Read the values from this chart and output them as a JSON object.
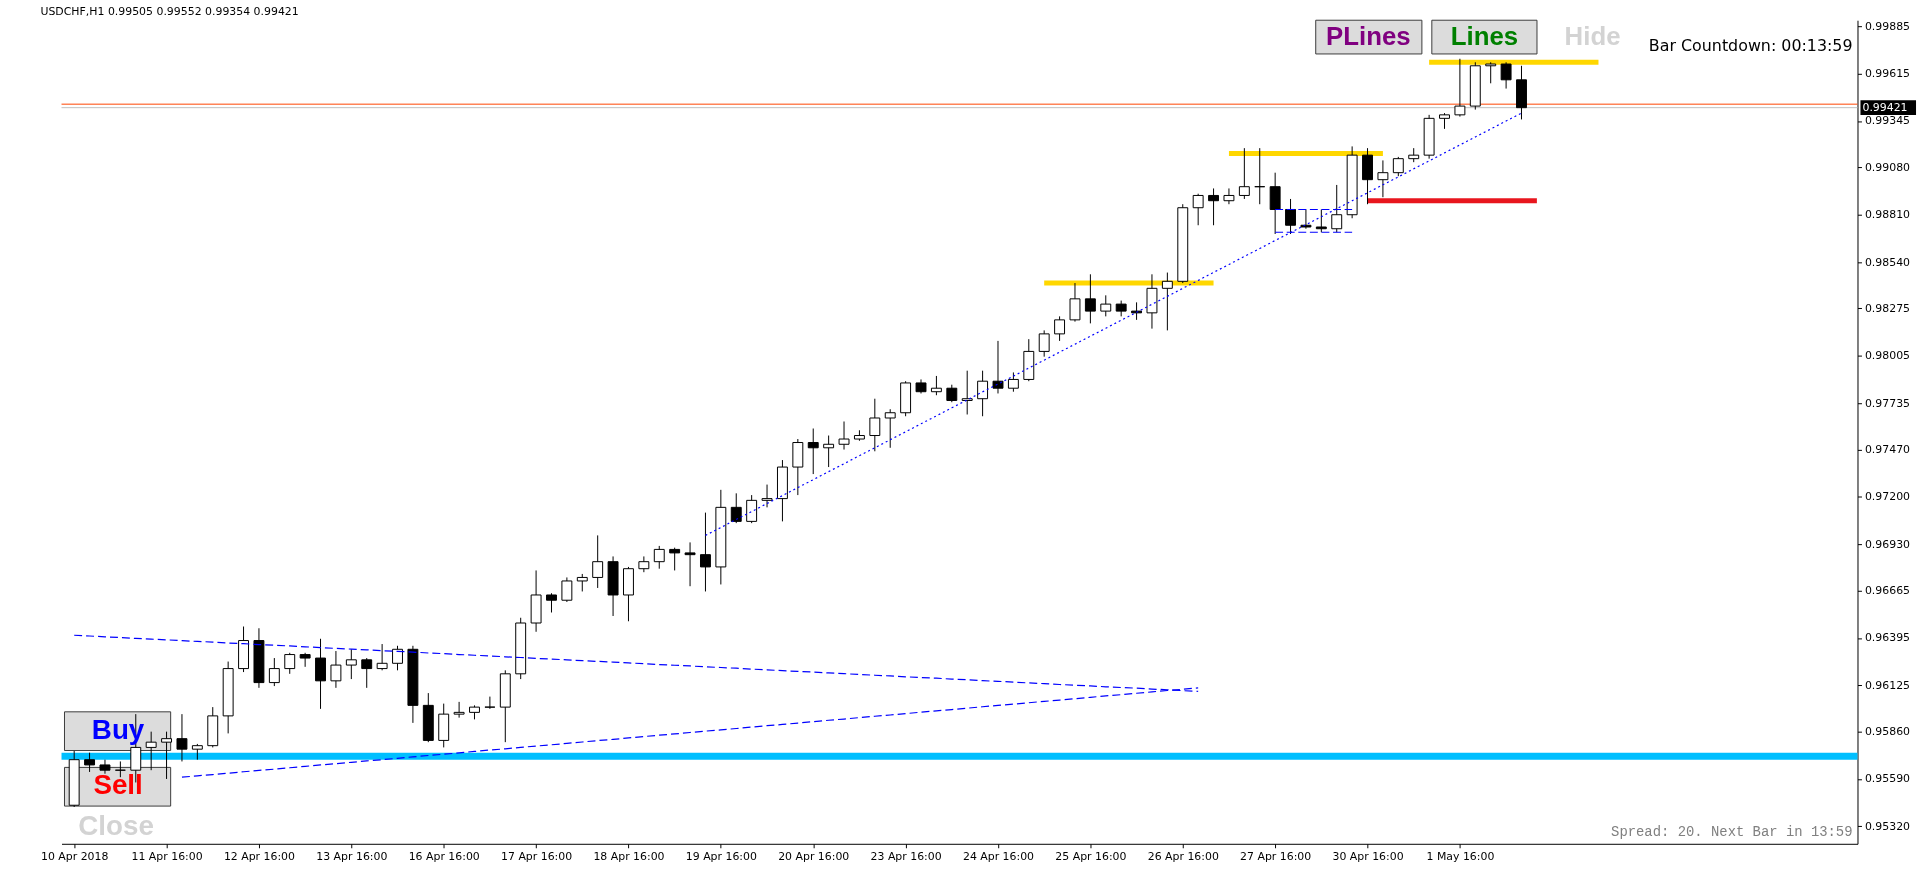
{
  "chart_data": {
    "type": "candlestick",
    "title": "USDCHF,H1 0.99505 0.99552 0.99354 0.99421",
    "categories": [
      "10 Apr 2018",
      null,
      null,
      null,
      null,
      null,
      "11 Apr 16:00",
      null,
      null,
      null,
      null,
      null,
      "12 Apr 16:00",
      null,
      null,
      null,
      null,
      null,
      "13 Apr 16:00",
      null,
      null,
      null,
      null,
      null,
      "16 Apr 16:00",
      null,
      null,
      null,
      null,
      null,
      "17 Apr 16:00",
      null,
      null,
      null,
      null,
      null,
      "18 Apr 16:00",
      null,
      null,
      null,
      null,
      null,
      "19 Apr 16:00",
      null,
      null,
      null,
      null,
      null,
      "20 Apr 16:00",
      null,
      null,
      null,
      null,
      null,
      "23 Apr 16:00",
      null,
      null,
      null,
      null,
      null,
      "24 Apr 16:00",
      null,
      null,
      null,
      null,
      null,
      "25 Apr 16:00",
      null,
      null,
      null,
      null,
      null,
      "26 Apr 16:00",
      null,
      null,
      null,
      null,
      null,
      "27 Apr 16:00",
      null,
      null,
      null,
      null,
      null,
      "30 Apr 16:00",
      null,
      null,
      null,
      null,
      null,
      "1 May 16:00",
      null,
      null,
      null,
      null,
      null,
      null,
      null,
      null,
      null,
      null,
      null,
      null,
      null,
      null,
      null,
      null,
      null,
      null,
      null,
      null,
      null,
      null,
      null,
      null,
      null
    ],
    "ohlc": [
      [
        0.9544,
        0.9575,
        0.9543,
        0.957
      ],
      [
        0.957,
        0.9574,
        0.9563,
        0.9567
      ],
      [
        0.9567,
        0.957,
        0.9562,
        0.9564
      ],
      [
        0.9564,
        0.9569,
        0.956,
        0.9564
      ],
      [
        0.9564,
        0.9596,
        0.9557,
        0.9577
      ],
      [
        0.9577,
        0.9586,
        0.9564,
        0.958
      ],
      [
        0.958,
        0.9586,
        0.9559,
        0.9582
      ],
      [
        0.9582,
        0.9596,
        0.9569,
        0.9576
      ],
      [
        0.9576,
        0.9579,
        0.957,
        0.9578
      ],
      [
        0.9578,
        0.96,
        0.9577,
        0.9595
      ],
      [
        0.9595,
        0.9626,
        0.9585,
        0.9622
      ],
      [
        0.9622,
        0.9646,
        0.962,
        0.9638
      ],
      [
        0.9638,
        0.9645,
        0.9611,
        0.9614
      ],
      [
        0.9614,
        0.9628,
        0.9612,
        0.9622
      ],
      [
        0.9622,
        0.9631,
        0.9619,
        0.963
      ],
      [
        0.963,
        0.9631,
        0.9623,
        0.9628
      ],
      [
        0.9628,
        0.9639,
        0.9599,
        0.9615
      ],
      [
        0.9615,
        0.9632,
        0.9611,
        0.9624
      ],
      [
        0.9624,
        0.9633,
        0.9616,
        0.9627
      ],
      [
        0.9627,
        0.9628,
        0.9611,
        0.9622
      ],
      [
        0.9622,
        0.9636,
        0.9621,
        0.9625
      ],
      [
        0.9625,
        0.9635,
        0.9621,
        0.9633
      ],
      [
        0.9633,
        0.9635,
        0.9591,
        0.9601
      ],
      [
        0.9601,
        0.9608,
        0.958,
        0.9581
      ],
      [
        0.9581,
        0.9602,
        0.9577,
        0.9596
      ],
      [
        0.9596,
        0.9603,
        0.9594,
        0.9597
      ],
      [
        0.9597,
        0.9601,
        0.9593,
        0.96
      ],
      [
        0.96,
        0.9606,
        0.9599,
        0.96
      ],
      [
        0.96,
        0.9621,
        0.958,
        0.9619
      ],
      [
        0.9619,
        0.9651,
        0.9616,
        0.9648
      ],
      [
        0.9648,
        0.9678,
        0.9643,
        0.9664
      ],
      [
        0.9664,
        0.9665,
        0.9654,
        0.9661
      ],
      [
        0.9661,
        0.9674,
        0.966,
        0.9672
      ],
      [
        0.9672,
        0.9676,
        0.9666,
        0.9674
      ],
      [
        0.9674,
        0.9698,
        0.9668,
        0.9683
      ],
      [
        0.9683,
        0.9686,
        0.9652,
        0.9664
      ],
      [
        0.9664,
        0.968,
        0.9649,
        0.9679
      ],
      [
        0.9679,
        0.9686,
        0.9677,
        0.9683
      ],
      [
        0.9683,
        0.9692,
        0.9679,
        0.969
      ],
      [
        0.969,
        0.9691,
        0.9678,
        0.9688
      ],
      [
        0.9688,
        0.9694,
        0.9669,
        0.9687
      ],
      [
        0.9687,
        0.9711,
        0.9666,
        0.968
      ],
      [
        0.968,
        0.9724,
        0.967,
        0.9714
      ],
      [
        0.9714,
        0.9722,
        0.9705,
        0.9706
      ],
      [
        0.9706,
        0.9721,
        0.9705,
        0.9718
      ],
      [
        0.9718,
        0.9727,
        0.9714,
        0.9719
      ],
      [
        0.9719,
        0.9741,
        0.9706,
        0.9737
      ],
      [
        0.9737,
        0.9753,
        0.9721,
        0.9751
      ],
      [
        0.9751,
        0.9759,
        0.9733,
        0.9748
      ],
      [
        0.9748,
        0.9755,
        0.9737,
        0.975
      ],
      [
        0.975,
        0.9763,
        0.9747,
        0.9753
      ],
      [
        0.9753,
        0.9758,
        0.9752,
        0.9755
      ],
      [
        0.9755,
        0.9776,
        0.9746,
        0.9765
      ],
      [
        0.9765,
        0.977,
        0.9748,
        0.9768
      ],
      [
        0.9768,
        0.9786,
        0.9766,
        0.9785
      ],
      [
        0.9785,
        0.9787,
        0.9779,
        0.978
      ],
      [
        0.978,
        0.9789,
        0.9778,
        0.9782
      ],
      [
        0.9782,
        0.9784,
        0.9774,
        0.9775
      ],
      [
        0.9775,
        0.9792,
        0.9767,
        0.9776
      ],
      [
        0.9776,
        0.9792,
        0.9766,
        0.9786
      ],
      [
        0.9786,
        0.9809,
        0.9779,
        0.9782
      ],
      [
        0.9782,
        0.9791,
        0.978,
        0.9787
      ],
      [
        0.9787,
        0.981,
        0.9786,
        0.9803
      ],
      [
        0.9803,
        0.9815,
        0.98,
        0.9813
      ],
      [
        0.9813,
        0.9823,
        0.9809,
        0.9821
      ],
      [
        0.9821,
        0.9842,
        0.982,
        0.9833
      ],
      [
        0.9833,
        0.9847,
        0.9819,
        0.9826
      ],
      [
        0.9826,
        0.9835,
        0.9823,
        0.983
      ],
      [
        0.983,
        0.9832,
        0.9823,
        0.9826
      ],
      [
        0.9826,
        0.9831,
        0.9821,
        0.9825
      ],
      [
        0.9825,
        0.9847,
        0.9816,
        0.9839
      ],
      [
        0.9839,
        0.9848,
        0.9815,
        0.9843
      ],
      [
        0.9843,
        0.9887,
        0.9842,
        0.9885
      ],
      [
        0.9885,
        0.9893,
        0.9875,
        0.9892
      ],
      [
        0.9892,
        0.9896,
        0.9875,
        0.9889
      ],
      [
        0.9889,
        0.9896,
        0.9887,
        0.9892
      ],
      [
        0.9892,
        0.9919,
        0.989,
        0.9897
      ],
      [
        0.9897,
        0.9919,
        0.9887,
        0.9897
      ],
      [
        0.9897,
        0.9905,
        0.987,
        0.9884
      ],
      [
        0.9884,
        0.989,
        0.987,
        0.9875
      ],
      [
        0.9875,
        0.9884,
        0.9873,
        0.9874
      ],
      [
        0.9874,
        0.9884,
        0.9871,
        0.9873
      ],
      [
        0.9873,
        0.9898,
        0.9871,
        0.9881
      ],
      [
        0.9881,
        0.992,
        0.9879,
        0.9915
      ],
      [
        0.9915,
        0.9919,
        0.9887,
        0.9901
      ],
      [
        0.9901,
        0.9912,
        0.9891,
        0.9905
      ],
      [
        0.9905,
        0.9914,
        0.9903,
        0.9913
      ],
      [
        0.9913,
        0.9919,
        0.9911,
        0.9915
      ],
      [
        0.9915,
        0.9938,
        0.9913,
        0.9936
      ],
      [
        0.9936,
        0.9939,
        0.993,
        0.9938
      ],
      [
        0.9938,
        0.997,
        0.9937,
        0.9943
      ],
      [
        0.9943,
        0.9968,
        0.9941,
        0.9966
      ],
      [
        0.9966,
        0.9968,
        0.9956,
        0.9967
      ],
      [
        0.9967,
        0.9968,
        0.9953,
        0.9958
      ],
      [
        0.9958,
        0.9966,
        0.99354,
        0.99421
      ],
      null,
      null,
      null,
      null,
      null,
      null,
      null,
      null,
      null,
      null,
      null,
      null,
      null,
      null,
      null,
      null,
      null,
      null,
      null,
      null,
      null
    ],
    "ylim": [
      0.9522,
      0.9992
    ],
    "yticks": [
      0.99885,
      0.99615,
      0.99345,
      {
        "value": 0.9908,
        "label": "0.99080"
      },
      {
        "value": 0.9881,
        "label": "0.98810"
      },
      {
        "value": 0.9854,
        "label": "0.98540"
      },
      0.98275,
      0.98005,
      0.97735,
      {
        "value": 0.9747,
        "label": "0.97470"
      },
      {
        "value": 0.972,
        "label": "0.97200"
      },
      {
        "value": 0.9693,
        "label": "0.96930"
      },
      0.96665,
      0.96395,
      0.96125,
      {
        "value": 0.9586,
        "label": "0.95860"
      },
      {
        "value": 0.9559,
        "label": "0.95590"
      },
      {
        "value": 0.9532,
        "label": "0.95320"
      }
    ],
    "series": [
      {
        "type": "line",
        "color": "#0000ff",
        "line_style": "dashed",
        "values": [
          0.9641,
          0.96406,
          0.96401,
          0.96397,
          0.96392,
          0.96388,
          0.96384,
          0.96379,
          0.96375,
          0.96371,
          0.96366,
          0.96362,
          0.96357,
          0.96353,
          0.96349,
          0.96344,
          0.9634,
          0.96335,
          0.96331,
          0.96327,
          0.96322,
          0.96318,
          0.96314,
          0.96309,
          0.96305,
          0.963,
          0.96296,
          0.96292,
          0.96287,
          0.96283,
          0.96278,
          0.96274,
          0.9627,
          0.96265,
          0.96261,
          0.96257,
          0.96252,
          0.96248,
          0.96243,
          0.96239,
          0.96235,
          0.9623,
          0.96226,
          0.96222,
          0.96217,
          0.96213,
          0.96208,
          0.96204,
          0.962,
          0.96195,
          0.96191,
          0.96186,
          0.96182,
          0.96178,
          0.96173,
          0.96169,
          0.96165,
          0.9616,
          0.96156,
          0.96151,
          0.96147,
          0.96143,
          0.96138,
          0.96134,
          0.96129,
          0.96125,
          0.96121,
          0.96116,
          0.96112,
          0.96108,
          0.96103,
          0.96099,
          0.96094,
          0.9609,
          null,
          null,
          null,
          null,
          null,
          null,
          null,
          null,
          null,
          null,
          null,
          null,
          null,
          null,
          null,
          null,
          null,
          null,
          null,
          null,
          null,
          null,
          null,
          null,
          null,
          null,
          null,
          null,
          null,
          null,
          null,
          null,
          null,
          null,
          null,
          null,
          null,
          null,
          null,
          null,
          null,
          null
        ]
      },
      {
        "type": "line",
        "color": "#0000ff",
        "line_style": "dashed",
        "values": [
          null,
          null,
          null,
          null,
          null,
          null,
          null,
          0.956,
          0.95608,
          0.95615,
          0.95623,
          0.95631,
          0.95639,
          0.95646,
          0.95654,
          0.95662,
          0.9567,
          0.95677,
          0.95685,
          0.95693,
          0.957,
          0.95708,
          0.95716,
          0.95724,
          0.95731,
          0.95739,
          0.95747,
          0.95755,
          0.95762,
          0.9577,
          0.95778,
          0.95785,
          0.95793,
          0.95801,
          0.95809,
          0.95816,
          0.95824,
          0.95832,
          0.9584,
          0.95847,
          0.95855,
          0.95863,
          0.9587,
          0.95878,
          0.95886,
          0.95894,
          0.95901,
          0.95909,
          0.95917,
          0.95925,
          0.95932,
          0.9594,
          0.95948,
          0.95955,
          0.95963,
          0.95971,
          0.95979,
          0.95986,
          0.95994,
          0.96002,
          0.9601,
          0.96017,
          0.96025,
          0.96033,
          0.9604,
          0.96048,
          0.96056,
          0.96064,
          0.96071,
          0.96079,
          0.96087,
          0.96095,
          0.96102,
          0.9611,
          null,
          null,
          null,
          null,
          null,
          null,
          null,
          null,
          null,
          null,
          null,
          null,
          null,
          null,
          null,
          null,
          null,
          null,
          null,
          null,
          null,
          null,
          null,
          null,
          null,
          null,
          null,
          null,
          null,
          null,
          null,
          null,
          null,
          null,
          null,
          null,
          null,
          null,
          null,
          null,
          null,
          null
        ]
      },
      {
        "type": "line",
        "color": "#0000ff",
        "line_style": "dotted",
        "values": [
          null,
          null,
          null,
          null,
          null,
          null,
          null,
          null,
          null,
          null,
          null,
          null,
          null,
          null,
          null,
          null,
          null,
          null,
          null,
          null,
          null,
          null,
          null,
          null,
          null,
          null,
          null,
          null,
          null,
          null,
          null,
          null,
          null,
          null,
          null,
          null,
          null,
          null,
          null,
          null,
          null,
          0.9698,
          0.97025,
          0.97071,
          0.97116,
          0.97162,
          0.97207,
          0.97253,
          0.97298,
          0.97344,
          0.97389,
          0.97435,
          0.9748,
          0.97526,
          0.97571,
          0.97617,
          0.97662,
          0.97708,
          0.97753,
          0.97799,
          0.97844,
          0.97889,
          0.97935,
          0.9798,
          0.98026,
          0.98071,
          0.98117,
          0.98162,
          0.98208,
          0.98253,
          0.98299,
          0.98344,
          0.9839,
          0.98435,
          0.98481,
          0.98526,
          0.98572,
          0.98617,
          0.98663,
          0.98708,
          0.98753,
          0.98799,
          0.98844,
          0.9889,
          0.98935,
          0.98981,
          0.99026,
          0.99072,
          0.99117,
          0.99163,
          0.99208,
          0.99254,
          0.99299,
          0.99345,
          0.9939,
          null,
          null,
          null,
          null,
          null,
          null,
          null,
          null,
          null,
          null,
          null,
          null,
          null,
          null,
          null,
          null,
          null,
          null,
          null,
          null,
          null
        ]
      },
      {
        "type": "line",
        "color": "#0000ff",
        "line_style": "dashed",
        "values": [
          null,
          null,
          null,
          null,
          null,
          null,
          null,
          null,
          null,
          null,
          null,
          null,
          null,
          null,
          null,
          null,
          null,
          null,
          null,
          null,
          null,
          null,
          null,
          null,
          null,
          null,
          null,
          null,
          null,
          null,
          null,
          null,
          null,
          null,
          null,
          null,
          null,
          null,
          null,
          null,
          null,
          null,
          null,
          null,
          null,
          null,
          null,
          null,
          null,
          null,
          null,
          null,
          null,
          null,
          null,
          null,
          null,
          null,
          null,
          null,
          null,
          null,
          null,
          null,
          null,
          null,
          null,
          null,
          null,
          null,
          null,
          null,
          null,
          null,
          null,
          null,
          null,
          null,
          0.9884,
          0.9884,
          0.9884,
          0.9884,
          0.9884,
          0.9884,
          null,
          null,
          null,
          null,
          null,
          null,
          null,
          null,
          null,
          null,
          null,
          null,
          null,
          null,
          null,
          null,
          null,
          null,
          null,
          null,
          null,
          null,
          null,
          null,
          null,
          null,
          null,
          null,
          null,
          null,
          null,
          null
        ]
      },
      {
        "type": "line",
        "color": "#0000ff",
        "line_style": "dashed",
        "values": [
          null,
          null,
          null,
          null,
          null,
          null,
          null,
          null,
          null,
          null,
          null,
          null,
          null,
          null,
          null,
          null,
          null,
          null,
          null,
          null,
          null,
          null,
          null,
          null,
          null,
          null,
          null,
          null,
          null,
          null,
          null,
          null,
          null,
          null,
          null,
          null,
          null,
          null,
          null,
          null,
          null,
          null,
          null,
          null,
          null,
          null,
          null,
          null,
          null,
          null,
          null,
          null,
          null,
          null,
          null,
          null,
          null,
          null,
          null,
          null,
          null,
          null,
          null,
          null,
          null,
          null,
          null,
          null,
          null,
          null,
          null,
          null,
          null,
          null,
          null,
          null,
          null,
          null,
          0.9871,
          0.9871,
          0.9871,
          0.9871,
          0.9871,
          0.9871,
          null,
          null,
          null,
          null,
          null,
          null,
          null,
          null,
          null,
          null,
          null,
          null,
          null,
          null,
          null,
          null,
          null,
          null,
          null,
          null,
          null,
          null,
          null,
          null,
          null,
          null,
          null,
          null,
          null,
          null,
          null,
          null
        ]
      },
      {
        "type": "line",
        "color": "#ffd700",
        "line_style": "solid",
        "values": [
          null,
          null,
          null,
          null,
          null,
          null,
          null,
          null,
          null,
          null,
          null,
          null,
          null,
          null,
          null,
          null,
          null,
          null,
          null,
          null,
          null,
          null,
          null,
          null,
          null,
          null,
          null,
          null,
          null,
          null,
          null,
          null,
          null,
          null,
          null,
          null,
          null,
          null,
          null,
          null,
          null,
          null,
          null,
          null,
          null,
          null,
          null,
          null,
          null,
          null,
          null,
          null,
          null,
          null,
          null,
          null,
          null,
          null,
          null,
          null,
          null,
          null,
          null,
          null,
          null,
          null,
          null,
          null,
          null,
          null,
          null,
          null,
          null,
          null,
          null,
          null,
          null,
          null,
          null,
          null,
          null,
          null,
          null,
          null,
          null,
          null,
          null,
          null,
          0.9968,
          0.9968,
          0.9968,
          0.9968,
          0.9968,
          0.9968,
          0.9968,
          0.9968,
          0.9968,
          0.9968,
          0.9968,
          0.9968,
          null,
          null,
          null,
          null,
          null,
          null,
          null,
          null,
          null,
          null,
          null,
          null,
          null,
          null,
          null,
          null
        ]
      },
      {
        "type": "line",
        "color": "#ffd700",
        "line_style": "solid",
        "values": [
          null,
          null,
          null,
          null,
          null,
          null,
          null,
          null,
          null,
          null,
          null,
          null,
          null,
          null,
          null,
          null,
          null,
          null,
          null,
          null,
          null,
          null,
          null,
          null,
          null,
          null,
          null,
          null,
          null,
          null,
          null,
          null,
          null,
          null,
          null,
          null,
          null,
          null,
          null,
          null,
          null,
          null,
          null,
          null,
          null,
          null,
          null,
          null,
          null,
          null,
          null,
          null,
          null,
          null,
          null,
          null,
          null,
          null,
          null,
          null,
          null,
          null,
          null,
          null,
          null,
          null,
          null,
          null,
          null,
          null,
          null,
          null,
          null,
          null,
          null,
          0.9916,
          0.9916,
          0.9916,
          0.9916,
          0.9916,
          0.9916,
          0.9916,
          0.9916,
          0.9916,
          0.9916,
          0.9916,
          null,
          null,
          null,
          null,
          null,
          null,
          null,
          null,
          null,
          null,
          null,
          null,
          null,
          null,
          null,
          null,
          null,
          null,
          null,
          null,
          null,
          null,
          null,
          null,
          null,
          null,
          null,
          null,
          null,
          null
        ]
      },
      {
        "type": "line",
        "color": "#ffd700",
        "line_style": "solid",
        "values": [
          null,
          null,
          null,
          null,
          null,
          null,
          null,
          null,
          null,
          null,
          null,
          null,
          null,
          null,
          null,
          null,
          null,
          null,
          null,
          null,
          null,
          null,
          null,
          null,
          null,
          null,
          null,
          null,
          null,
          null,
          null,
          null,
          null,
          null,
          null,
          null,
          null,
          null,
          null,
          null,
          null,
          null,
          null,
          null,
          null,
          null,
          null,
          null,
          null,
          null,
          null,
          null,
          null,
          null,
          null,
          null,
          null,
          null,
          null,
          null,
          null,
          null,
          null,
          0.9842,
          0.9842,
          0.9842,
          0.9842,
          0.9842,
          0.9842,
          0.9842,
          0.9842,
          0.9842,
          0.9842,
          0.9842,
          0.9842,
          null,
          null,
          null,
          null,
          null,
          null,
          null,
          null,
          null,
          null,
          null,
          null,
          null,
          null,
          null,
          null,
          null,
          null,
          null,
          null,
          null,
          null,
          null,
          null,
          null,
          null,
          null,
          null,
          null,
          null,
          null,
          null,
          null,
          null,
          null,
          null,
          null,
          null,
          null,
          null,
          null
        ]
      },
      {
        "type": "line",
        "color": "#e8161e",
        "line_style": "solid",
        "values": [
          null,
          null,
          null,
          null,
          null,
          null,
          null,
          null,
          null,
          null,
          null,
          null,
          null,
          null,
          null,
          null,
          null,
          null,
          null,
          null,
          null,
          null,
          null,
          null,
          null,
          null,
          null,
          null,
          null,
          null,
          null,
          null,
          null,
          null,
          null,
          null,
          null,
          null,
          null,
          null,
          null,
          null,
          null,
          null,
          null,
          null,
          null,
          null,
          null,
          null,
          null,
          null,
          null,
          null,
          null,
          null,
          null,
          null,
          null,
          null,
          null,
          null,
          null,
          null,
          null,
          null,
          null,
          null,
          null,
          null,
          null,
          null,
          null,
          null,
          null,
          null,
          null,
          null,
          null,
          null,
          null,
          null,
          null,
          null,
          0.9889,
          0.9889,
          0.9889,
          0.9889,
          0.9889,
          0.9889,
          0.9889,
          0.9889,
          0.9889,
          0.9889,
          0.9889,
          0.9889,
          null,
          null,
          null,
          null,
          null,
          null,
          null,
          null,
          null,
          null,
          null,
          null,
          null,
          null,
          null,
          null,
          null,
          null,
          null,
          null
        ]
      }
    ],
    "ref_lines": [
      {
        "axis": "y",
        "value": 0.9572,
        "color": "#00bfff"
      },
      {
        "axis": "y",
        "value": 0.99441,
        "color": "#ff4500"
      },
      {
        "axis": "y",
        "value": 0.99421,
        "label": "0.99421",
        "color": "#c0c0c0"
      }
    ],
    "annotations": [
      "Buy",
      "Sell",
      "Close",
      "PLines",
      "Lines",
      "Hide",
      "Bar Countdown: 00:13:59",
      "Spread: 20. Next Bar in 13:59"
    ]
  }
}
